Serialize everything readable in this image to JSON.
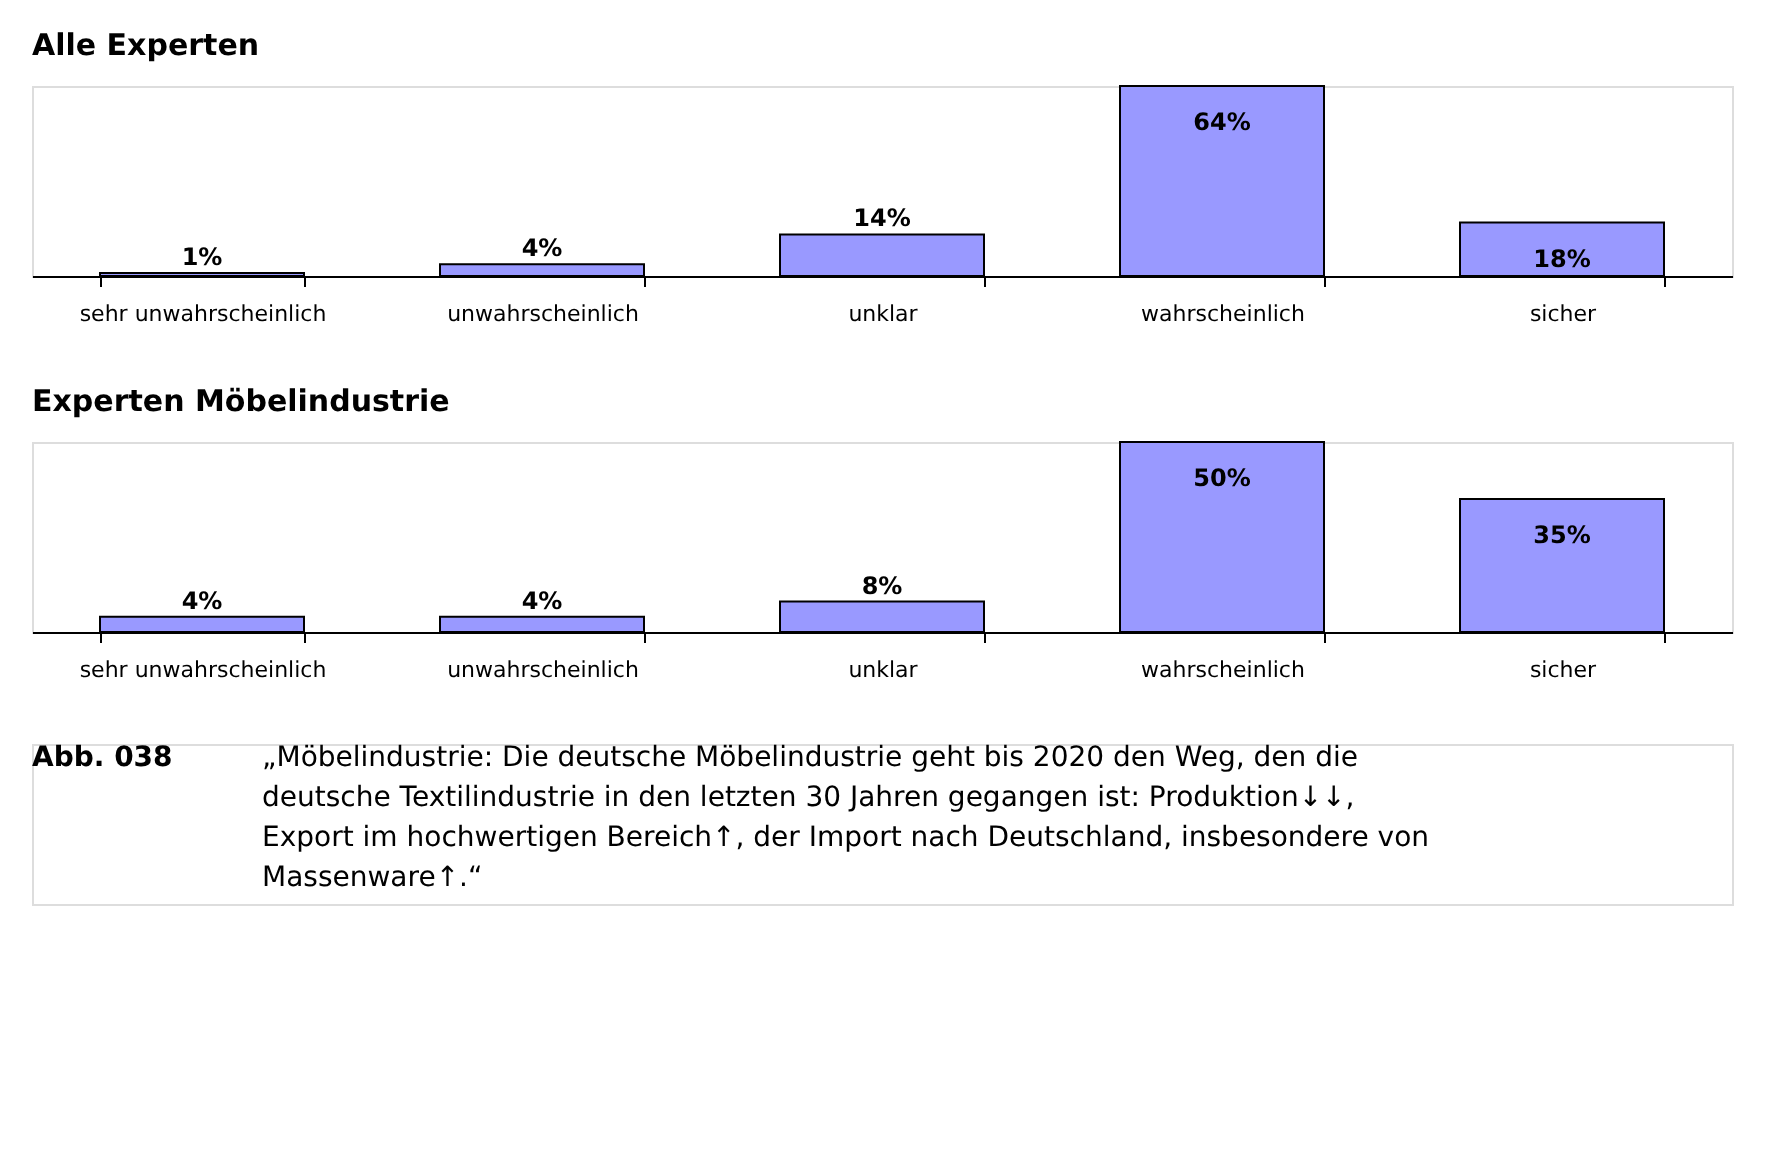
{
  "chart_data": [
    {
      "type": "bar",
      "title": "Alle Experten",
      "categories": [
        "sehr unwahrscheinlich",
        "unwahrscheinlich",
        "unklar",
        "wahrscheinlich",
        "sicher"
      ],
      "values": [
        1,
        4,
        14,
        64,
        18
      ],
      "color": "#9999ff",
      "value_labels": [
        "1%",
        "4%",
        "14%",
        "64%",
        "18%"
      ]
    },
    {
      "type": "bar",
      "title": "Experten Möbelindustrie",
      "categories": [
        "sehr unwahrscheinlich",
        "unwahrscheinlich",
        "unklar",
        "wahrscheinlich",
        "sicher"
      ],
      "values": [
        4,
        4,
        8,
        50,
        35
      ],
      "color": "#9999ff",
      "value_labels": [
        "4%",
        "4%",
        "8%",
        "50%",
        "35%"
      ]
    },
    {
      "type": "other",
      "annotations": [
        "Abb. 038",
        "„Möbelindustrie: Die deutsche Möbelindustrie geht bis 2020 den Weg, den die deutsche Textilindustrie in den letzten 30 Jahren gegangen ist: Produktion↓↓, Export im hochwertigen Bereich↑, der Import nach Deutschland, insbesondere von Massenware↑.“"
      ]
    }
  ]
}
